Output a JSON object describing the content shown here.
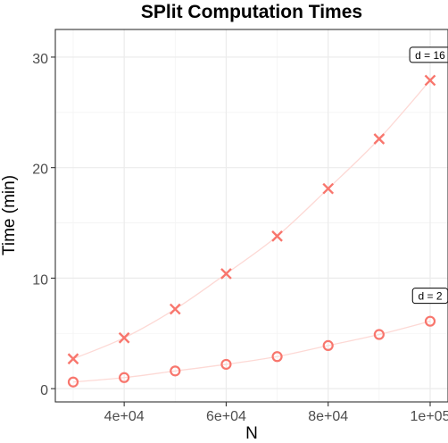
{
  "chart_data": {
    "type": "scatter",
    "title": "SPlit Computation Times",
    "xlabel": "N",
    "ylabel": "Time (min)",
    "xlim": [
      26500,
      103500
    ],
    "ylim": [
      -1.2,
      32.5
    ],
    "x_ticks": [
      40000,
      60000,
      80000,
      100000
    ],
    "x_tick_labels": [
      "4e+04",
      "6e+04",
      "8e+04",
      "1e+05"
    ],
    "y_ticks": [
      0,
      10,
      20,
      30
    ],
    "y_tick_labels": [
      "0",
      "10",
      "20",
      "30"
    ],
    "grid": true,
    "x": [
      30000,
      40000,
      50000,
      60000,
      70000,
      80000,
      90000,
      100000
    ],
    "series": [
      {
        "marker": "circle",
        "annotation": "d = 2",
        "values": [
          0.6,
          1.0,
          1.6,
          2.2,
          2.9,
          3.9,
          4.9,
          6.1
        ]
      },
      {
        "marker": "cross",
        "annotation": "d = 16",
        "values": [
          2.7,
          4.6,
          7.2,
          10.4,
          13.8,
          18.1,
          22.6,
          27.9
        ]
      }
    ],
    "colors": {
      "points": "#f8766d",
      "smooth": "#fdd9d5",
      "grid": "#ebebeb",
      "panel_border": "#333333"
    }
  }
}
